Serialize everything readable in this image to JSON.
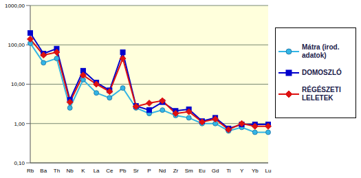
{
  "chart_data": {
    "type": "line",
    "log": "y",
    "grid": true,
    "legend": "right",
    "categories": [
      "Rb",
      "Ba",
      "Th",
      "Nb",
      "K",
      "La",
      "Ce",
      "Pb",
      "Sr",
      "P",
      "Nd",
      "Zr",
      "Sm",
      "Eu",
      "Gd",
      "Ti",
      "Y",
      "Yb",
      "Lu"
    ],
    "ylim": [
      0.1,
      1000
    ],
    "yticks": [
      {
        "value": 0.1,
        "label": "0,10"
      },
      {
        "value": 1,
        "label": "1,00"
      },
      {
        "value": 10,
        "label": "10,00"
      },
      {
        "value": 100,
        "label": "100,00"
      },
      {
        "value": 1000,
        "label": "1000,00"
      }
    ],
    "series": [
      {
        "name": "Mátra (irod. adatok)",
        "color": "#33b5e5",
        "marker": "circle",
        "values": [
          110,
          35,
          45,
          2.5,
          13,
          6,
          4.5,
          8,
          2.5,
          1.8,
          2.2,
          1.6,
          1.4,
          1.0,
          1.0,
          0.65,
          0.8,
          0.6,
          0.6
        ]
      },
      {
        "name": "DOMOSZLÓ",
        "color": "#0000cc",
        "marker": "square",
        "values": [
          200,
          60,
          80,
          4,
          22,
          11,
          7,
          65,
          2.8,
          2.2,
          3.5,
          2.1,
          2.3,
          1.15,
          1.4,
          0.75,
          0.95,
          0.95,
          0.95
        ]
      },
      {
        "name": "RÉGÉSZETI LELETEK",
        "color": "#dd1111",
        "marker": "diamond",
        "values": [
          140,
          55,
          65,
          3.5,
          17,
          10,
          6.5,
          45,
          2.7,
          3.3,
          3.8,
          1.8,
          2.0,
          1.1,
          1.3,
          0.7,
          1.0,
          0.85,
          0.85
        ]
      }
    ]
  }
}
